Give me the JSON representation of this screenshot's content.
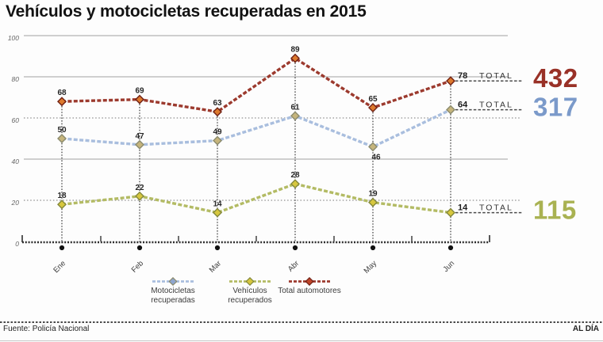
{
  "title": "Vehículos y motocicletas recuperadas en 2015",
  "total_label": "TOTAL",
  "footer": {
    "source": "Fuente: Policía Nacional",
    "brand": "AL DÍA"
  },
  "chart_data": {
    "type": "line",
    "title": "Vehículos y motocicletas recuperadas en 2015",
    "categories": [
      "Ene",
      "Feb",
      "Mar",
      "Abr",
      "May",
      "Jun"
    ],
    "ylim": [
      0,
      100
    ],
    "yticks": [
      0,
      20,
      40,
      60,
      80,
      100
    ],
    "grid": {
      "solid_ticks": [
        100,
        80,
        40
      ],
      "dotted_ticks": [
        60,
        20
      ]
    },
    "legend_position": "bottom",
    "series": [
      {
        "id": "motocicletas",
        "name": "Motocicletas recuperadas",
        "values": [
          50,
          47,
          49,
          61,
          46,
          64
        ],
        "total": 317,
        "line_color": "#a9bede",
        "marker_fill": "#c6b57c",
        "marker_stroke": "#8b8b6e",
        "legend_marker_fill": "#8fa6cf",
        "total_color": "#7b9aca"
      },
      {
        "id": "vehiculos",
        "name": "Vehículos recuperados",
        "values": [
          18,
          22,
          14,
          28,
          19,
          14
        ],
        "total": 115,
        "line_color": "#b3bb64",
        "marker_fill": "#d7c73e",
        "marker_stroke": "#84883c",
        "legend_marker_fill": "#d7c73e",
        "total_color": "#a9b252"
      },
      {
        "id": "total-automotores",
        "name": "Total automotores",
        "values": [
          68,
          69,
          63,
          89,
          65,
          78
        ],
        "total": 432,
        "line_color": "#9c3a2e",
        "marker_fill": "#dd7a2e",
        "marker_stroke": "#6f2014",
        "legend_marker_fill": "#c0452a",
        "total_color": "#993127"
      }
    ]
  }
}
